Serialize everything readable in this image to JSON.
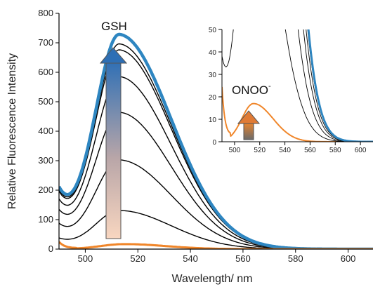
{
  "chart_data": [
    {
      "type": "line",
      "title": "",
      "xlabel": "Wavelength/ nm",
      "ylabel": "Relative Fluorescence Intensity",
      "xlim": [
        490,
        610
      ],
      "ylim": [
        0,
        800
      ],
      "xticks": [
        500,
        520,
        540,
        560,
        580,
        600
      ],
      "yticks": [
        0,
        100,
        200,
        300,
        400,
        500,
        600,
        700,
        800
      ],
      "grid": false,
      "annotations": [
        {
          "text": "GSH",
          "kind": "arrow-up",
          "note": "gradient arrow indicating increasing GSH"
        }
      ],
      "colors": {
        "gsh_final": "#2e86c1",
        "onoo": "#f0862a",
        "titration": "#000000"
      },
      "series": [
        {
          "color": "#000000",
          "peak_x": 513,
          "peak_y": 130
        },
        {
          "color": "#000000",
          "peak_x": 513,
          "peak_y": 300
        },
        {
          "color": "#000000",
          "peak_x": 513,
          "peak_y": 460
        },
        {
          "color": "#000000",
          "peak_x": 513,
          "peak_y": 580
        },
        {
          "color": "#000000",
          "peak_x": 513,
          "peak_y": 670
        },
        {
          "color": "#000000",
          "peak_x": 513,
          "peak_y": 690
        },
        {
          "color": "#2e86c1",
          "peak_x": 513,
          "peak_y": 722
        },
        {
          "color": "#f0862a",
          "peak_x": 515,
          "peak_y": 17
        }
      ]
    },
    {
      "type": "line",
      "title": "",
      "inset": true,
      "xlim": [
        490,
        610
      ],
      "ylim": [
        0,
        50
      ],
      "xticks": [
        500,
        520,
        540,
        560,
        580,
        600
      ],
      "yticks": [
        0,
        10,
        20,
        30,
        40,
        50
      ],
      "grid": false,
      "annotations": [
        {
          "text": "ONOO",
          "superscript": "-",
          "kind": "arrow-up"
        }
      ],
      "series": [
        {
          "color": "#f0862a",
          "peak_x": 515,
          "peak_y": 17
        },
        {
          "color": "#000000",
          "peak_x": 513,
          "peak_y": 130
        },
        {
          "color": "#000000",
          "peak_x": 513,
          "peak_y": 300
        },
        {
          "color": "#000000",
          "peak_x": 513,
          "peak_y": 460
        },
        {
          "color": "#000000",
          "peak_x": 513,
          "peak_y": 580
        },
        {
          "color": "#000000",
          "peak_x": 513,
          "peak_y": 670
        },
        {
          "color": "#2e86c1",
          "peak_x": 513,
          "peak_y": 722
        }
      ]
    }
  ]
}
